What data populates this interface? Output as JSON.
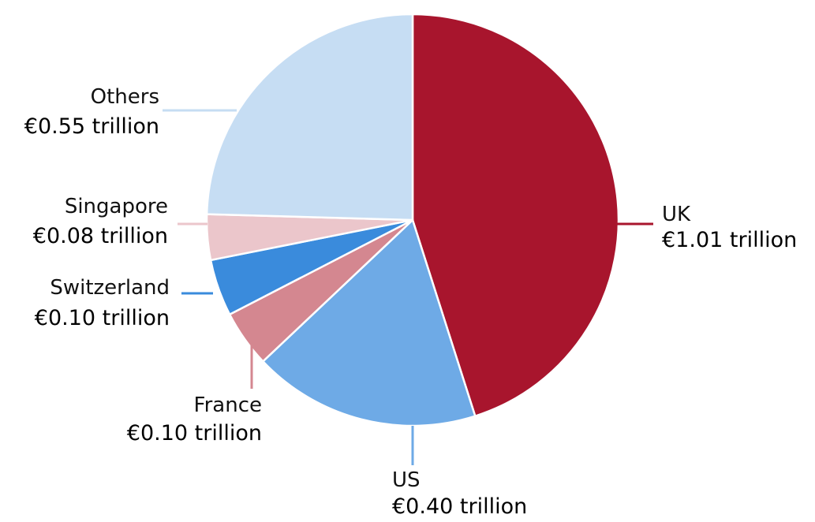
{
  "chart_data": {
    "type": "pie",
    "title": "",
    "unit": "€ trillion",
    "start": "12 o'clock, clockwise",
    "slices": [
      {
        "name": "UK",
        "value": 1.01,
        "label": "€1.01 trillion",
        "color": "#a8152d"
      },
      {
        "name": "US",
        "value": 0.4,
        "label": "€0.40 trillion",
        "color": "#6eaae6"
      },
      {
        "name": "France",
        "value": 0.1,
        "label": "€0.10 trillion",
        "color": "#d48790"
      },
      {
        "name": "Switzerland",
        "value": 0.1,
        "label": "€0.10 trillion",
        "color": "#3a8bdc"
      },
      {
        "name": "Singapore",
        "value": 0.08,
        "label": "€0.08 trillion",
        "color": "#ebc6cb"
      },
      {
        "name": "Others",
        "value": 0.55,
        "label": "€0.55 trillion",
        "color": "#c6ddf3"
      }
    ]
  }
}
